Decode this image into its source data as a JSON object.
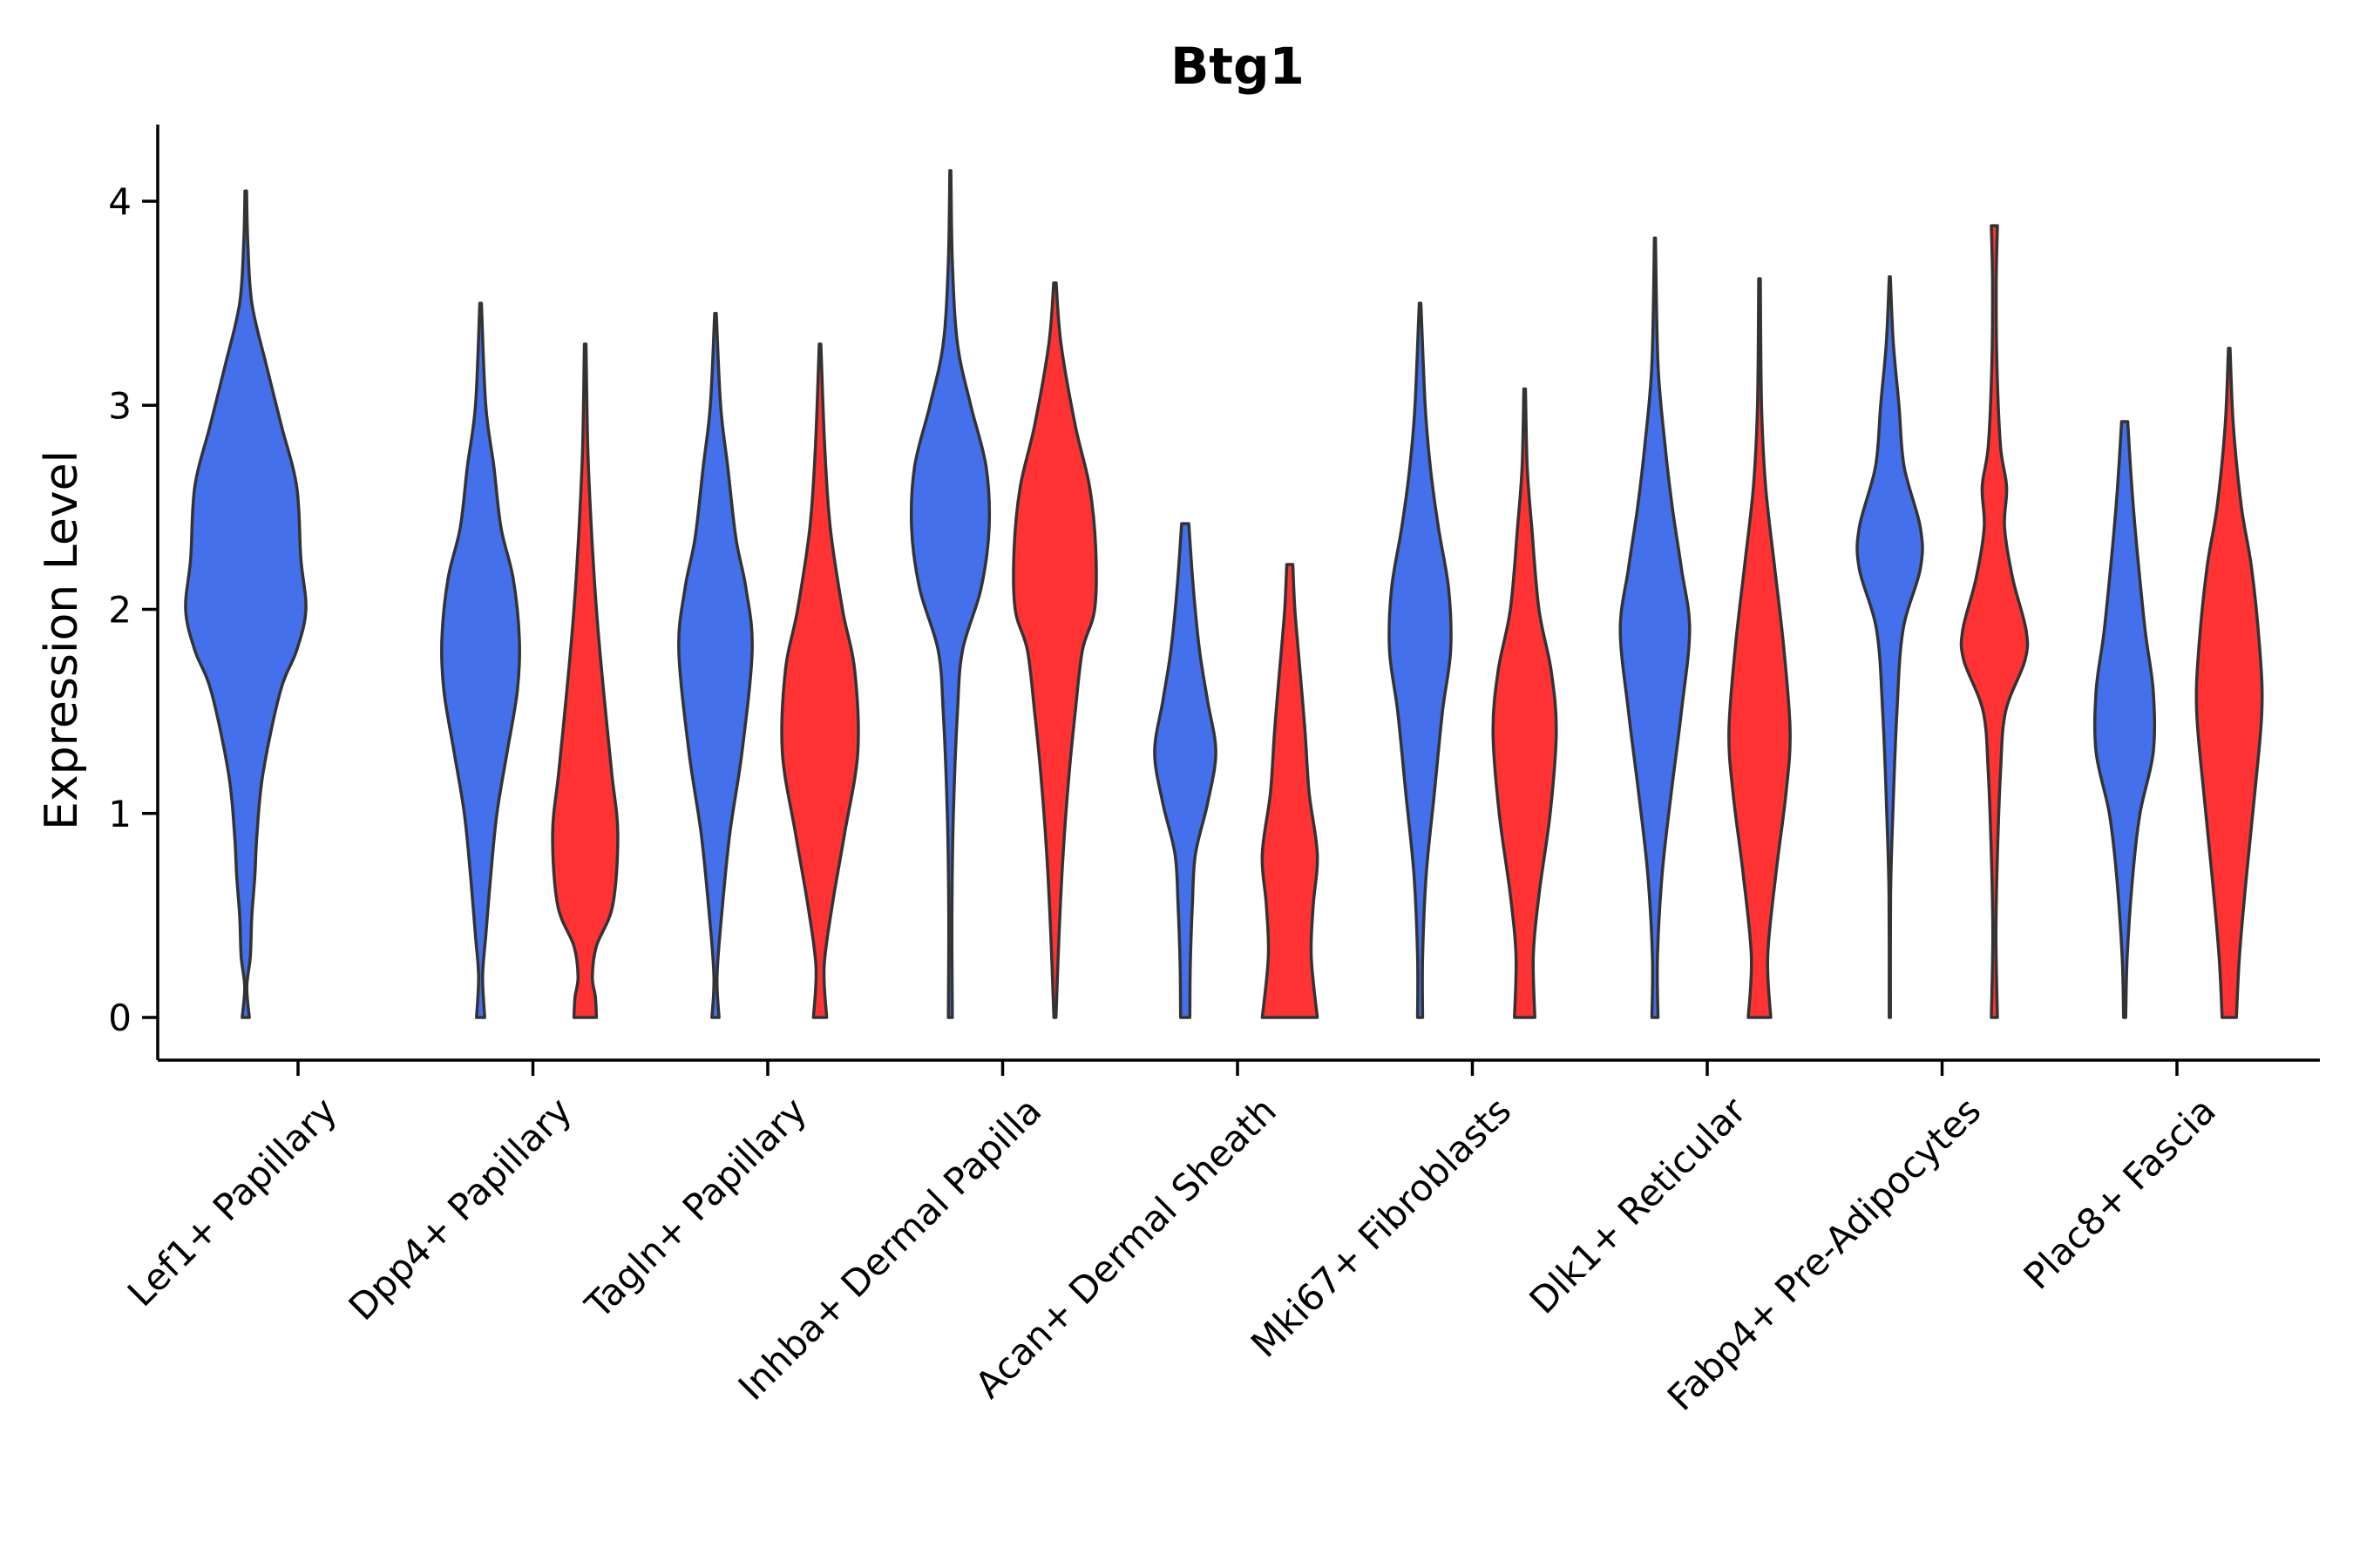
{
  "chart_data": {
    "type": "violin",
    "title": "Btg1",
    "xlabel": "",
    "ylabel": "Expression Level",
    "ylim": [
      -0.2,
      4.35
    ],
    "yticks": [
      0,
      1,
      2,
      3,
      4
    ],
    "legend": "none",
    "series_colors": {
      "group_a": "#4470EC",
      "group_b": "#FF3333"
    },
    "categories": [
      "Lef1+ Papillary",
      "Dpp4+ Papillary",
      "Tagln+ Papillary",
      "Inhba+ Dermal Papilla",
      "Acan+ Dermal Sheath",
      "Mki67+ Fibroblasts",
      "Dlk1+ Reticular",
      "Fabp4+ Pre-Adipocytes",
      "Plac8+ Fascia"
    ],
    "violins": [
      {
        "category": "Lef1+ Papillary",
        "group": "group_a",
        "profile": [
          [
            0,
            0.035
          ],
          [
            0.15,
            0.01
          ],
          [
            0.3,
            0.045
          ],
          [
            0.5,
            0.06
          ],
          [
            0.7,
            0.09
          ],
          [
            0.9,
            0.11
          ],
          [
            1.2,
            0.17
          ],
          [
            1.6,
            0.34
          ],
          [
            1.8,
            0.5
          ],
          [
            2.0,
            0.59
          ],
          [
            2.25,
            0.54
          ],
          [
            2.6,
            0.5
          ],
          [
            2.9,
            0.35
          ],
          [
            3.2,
            0.2
          ],
          [
            3.5,
            0.06
          ],
          [
            3.8,
            0.02
          ],
          [
            4.05,
            0.008
          ]
        ]
      },
      {
        "category": "Dpp4+ Papillary",
        "group": "group_a",
        "profile": [
          [
            0,
            0.04
          ],
          [
            0.2,
            0.02
          ],
          [
            0.4,
            0.05
          ],
          [
            0.7,
            0.1
          ],
          [
            1.0,
            0.16
          ],
          [
            1.3,
            0.26
          ],
          [
            1.6,
            0.36
          ],
          [
            1.85,
            0.38
          ],
          [
            2.15,
            0.32
          ],
          [
            2.4,
            0.2
          ],
          [
            2.7,
            0.13
          ],
          [
            3.0,
            0.05
          ],
          [
            3.5,
            0.008
          ]
        ]
      },
      {
        "category": "Dpp4+ Papillary",
        "group": "group_b",
        "profile": [
          [
            0,
            0.11
          ],
          [
            0.1,
            0.1
          ],
          [
            0.2,
            0.07
          ],
          [
            0.35,
            0.11
          ],
          [
            0.55,
            0.27
          ],
          [
            0.9,
            0.32
          ],
          [
            1.2,
            0.26
          ],
          [
            1.6,
            0.18
          ],
          [
            2.0,
            0.11
          ],
          [
            2.4,
            0.06
          ],
          [
            2.8,
            0.025
          ],
          [
            3.3,
            0.008
          ]
        ]
      },
      {
        "category": "Tagln+ Papillary",
        "group": "group_a",
        "profile": [
          [
            0,
            0.035
          ],
          [
            0.2,
            0.015
          ],
          [
            0.5,
            0.06
          ],
          [
            0.9,
            0.14
          ],
          [
            1.3,
            0.26
          ],
          [
            1.8,
            0.36
          ],
          [
            2.1,
            0.3
          ],
          [
            2.35,
            0.2
          ],
          [
            2.7,
            0.12
          ],
          [
            3.0,
            0.05
          ],
          [
            3.45,
            0.008
          ]
        ]
      },
      {
        "category": "Tagln+ Papillary",
        "group": "group_b",
        "profile": [
          [
            0,
            0.065
          ],
          [
            0.25,
            0.04
          ],
          [
            0.55,
            0.12
          ],
          [
            0.9,
            0.24
          ],
          [
            1.3,
            0.37
          ],
          [
            1.7,
            0.34
          ],
          [
            2.0,
            0.22
          ],
          [
            2.4,
            0.1
          ],
          [
            2.8,
            0.045
          ],
          [
            3.3,
            0.008
          ]
        ]
      },
      {
        "category": "Inhba+ Dermal Papilla",
        "group": "group_a",
        "profile": [
          [
            0,
            0.02
          ],
          [
            0.5,
            0.015
          ],
          [
            1.0,
            0.03
          ],
          [
            1.5,
            0.07
          ],
          [
            1.8,
            0.12
          ],
          [
            2.1,
            0.3
          ],
          [
            2.4,
            0.38
          ],
          [
            2.7,
            0.35
          ],
          [
            3.0,
            0.2
          ],
          [
            3.3,
            0.07
          ],
          [
            3.7,
            0.02
          ],
          [
            4.15,
            0.005
          ]
        ]
      },
      {
        "category": "Inhba+ Dermal Papilla",
        "group": "group_b",
        "profile": [
          [
            0,
            0.01
          ],
          [
            0.4,
            0.04
          ],
          [
            0.8,
            0.08
          ],
          [
            1.2,
            0.14
          ],
          [
            1.5,
            0.2
          ],
          [
            1.8,
            0.27
          ],
          [
            2.0,
            0.39
          ],
          [
            2.3,
            0.4
          ],
          [
            2.6,
            0.34
          ],
          [
            2.9,
            0.2
          ],
          [
            3.3,
            0.06
          ],
          [
            3.6,
            0.012
          ]
        ]
      },
      {
        "category": "Acan+ Dermal Sheath",
        "group": "group_a",
        "profile": [
          [
            0,
            0.045
          ],
          [
            0.25,
            0.05
          ],
          [
            0.55,
            0.07
          ],
          [
            0.8,
            0.1
          ],
          [
            1.05,
            0.22
          ],
          [
            1.3,
            0.3
          ],
          [
            1.55,
            0.22
          ],
          [
            1.8,
            0.14
          ],
          [
            2.1,
            0.08
          ],
          [
            2.42,
            0.035
          ]
        ]
      },
      {
        "category": "Acan+ Dermal Sheath",
        "group": "group_b",
        "profile": [
          [
            0,
            0.27
          ],
          [
            0.3,
            0.21
          ],
          [
            0.55,
            0.23
          ],
          [
            0.8,
            0.27
          ],
          [
            1.1,
            0.19
          ],
          [
            1.4,
            0.15
          ],
          [
            1.7,
            0.1
          ],
          [
            2.0,
            0.05
          ],
          [
            2.22,
            0.03
          ]
        ]
      },
      {
        "category": "Mki67+ Fibroblasts",
        "group": "group_a",
        "profile": [
          [
            0,
            0.025
          ],
          [
            0.3,
            0.025
          ],
          [
            0.7,
            0.06
          ],
          [
            1.1,
            0.14
          ],
          [
            1.5,
            0.22
          ],
          [
            1.8,
            0.3
          ],
          [
            2.1,
            0.28
          ],
          [
            2.4,
            0.18
          ],
          [
            2.7,
            0.1
          ],
          [
            3.0,
            0.05
          ],
          [
            3.5,
            0.008
          ]
        ]
      },
      {
        "category": "Mki67+ Fibroblasts",
        "group": "group_b",
        "profile": [
          [
            0,
            0.1
          ],
          [
            0.3,
            0.085
          ],
          [
            0.6,
            0.14
          ],
          [
            1.0,
            0.25
          ],
          [
            1.4,
            0.31
          ],
          [
            1.7,
            0.26
          ],
          [
            2.0,
            0.14
          ],
          [
            2.4,
            0.07
          ],
          [
            2.7,
            0.025
          ],
          [
            3.08,
            0.008
          ]
        ]
      },
      {
        "category": "Dlk1+ Reticular",
        "group": "group_a",
        "profile": [
          [
            0,
            0.03
          ],
          [
            0.3,
            0.025
          ],
          [
            0.7,
            0.07
          ],
          [
            1.1,
            0.16
          ],
          [
            1.5,
            0.26
          ],
          [
            1.9,
            0.34
          ],
          [
            2.2,
            0.26
          ],
          [
            2.5,
            0.17
          ],
          [
            2.8,
            0.1
          ],
          [
            3.2,
            0.03
          ],
          [
            3.82,
            0.005
          ]
        ]
      },
      {
        "category": "Dlk1+ Reticular",
        "group": "group_b",
        "profile": [
          [
            0,
            0.11
          ],
          [
            0.3,
            0.08
          ],
          [
            0.7,
            0.16
          ],
          [
            1.1,
            0.26
          ],
          [
            1.4,
            0.3
          ],
          [
            1.8,
            0.24
          ],
          [
            2.2,
            0.15
          ],
          [
            2.6,
            0.06
          ],
          [
            3.0,
            0.02
          ],
          [
            3.62,
            0.008
          ]
        ]
      },
      {
        "category": "Fabp4+ Pre-Adipocytes",
        "group": "group_a",
        "profile": [
          [
            0,
            0.006
          ],
          [
            0.6,
            0.008
          ],
          [
            1.0,
            0.03
          ],
          [
            1.5,
            0.07
          ],
          [
            1.9,
            0.13
          ],
          [
            2.2,
            0.3
          ],
          [
            2.4,
            0.3
          ],
          [
            2.7,
            0.14
          ],
          [
            3.0,
            0.09
          ],
          [
            3.3,
            0.035
          ],
          [
            3.63,
            0.005
          ]
        ]
      },
      {
        "category": "Fabp4+ Pre-Adipocytes",
        "group": "group_b",
        "profile": [
          [
            0,
            0.03
          ],
          [
            0.4,
            0.015
          ],
          [
            0.8,
            0.03
          ],
          [
            1.2,
            0.06
          ],
          [
            1.5,
            0.11
          ],
          [
            1.75,
            0.3
          ],
          [
            1.9,
            0.31
          ],
          [
            2.15,
            0.18
          ],
          [
            2.4,
            0.1
          ],
          [
            2.6,
            0.12
          ],
          [
            2.8,
            0.06
          ],
          [
            3.2,
            0.025
          ],
          [
            3.6,
            0.018
          ],
          [
            3.88,
            0.03
          ]
        ]
      },
      {
        "category": "Plac8+ Fascia",
        "group": "group_a",
        "profile": [
          [
            0,
            0.01
          ],
          [
            0.3,
            0.025
          ],
          [
            0.7,
            0.08
          ],
          [
            1.0,
            0.15
          ],
          [
            1.3,
            0.28
          ],
          [
            1.6,
            0.28
          ],
          [
            1.9,
            0.2
          ],
          [
            2.3,
            0.12
          ],
          [
            2.6,
            0.07
          ],
          [
            2.92,
            0.03
          ]
        ]
      },
      {
        "category": "Plac8+ Fascia",
        "group": "group_b",
        "profile": [
          [
            0,
            0.07
          ],
          [
            0.3,
            0.1
          ],
          [
            0.7,
            0.17
          ],
          [
            1.1,
            0.25
          ],
          [
            1.5,
            0.32
          ],
          [
            1.8,
            0.3
          ],
          [
            2.2,
            0.22
          ],
          [
            2.5,
            0.12
          ],
          [
            2.9,
            0.04
          ],
          [
            3.28,
            0.008
          ]
        ]
      }
    ]
  }
}
